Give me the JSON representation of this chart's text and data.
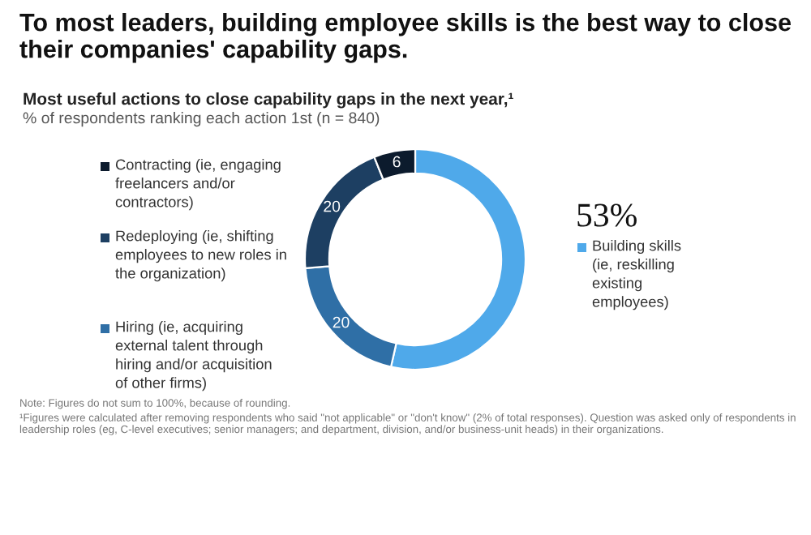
{
  "chart_data": {
    "type": "donut",
    "title": "To most leaders, building employee skills is the best way to close their companies' capability gaps.",
    "subtitle": "Most useful actions to close capability gaps in the next year,¹",
    "ylabel": "% of respondents ranking each action 1st (n = 840)",
    "categories": [
      "Building skills (ie, reskilling existing employees)",
      "Hiring (ie, acquiring external talent through hiring and/or acquisition of other firms)",
      "Redeploying (ie, shifting employees to new roles in the organization)",
      "Contracting (ie, engaging freelancers and/or contractors)"
    ],
    "values": [
      53,
      20,
      20,
      6
    ],
    "colors": [
      "#4fa9ea",
      "#2f6fa6",
      "#1d3f62",
      "#0c1b2d"
    ],
    "value_labels": [
      "53%",
      "20",
      "20",
      "6"
    ],
    "legend": "left",
    "annotations": [
      "Note: Figures do not sum to 100%, because of rounding.",
      "¹Figures were calculated after removing respondents who said \"not applicable\" or \"don't know\" (2% of total responses). Question was asked only of respondents in leadership roles (eg, C-level executives; senior managers; and department, division, and/or business-unit heads) in their organizations."
    ]
  }
}
